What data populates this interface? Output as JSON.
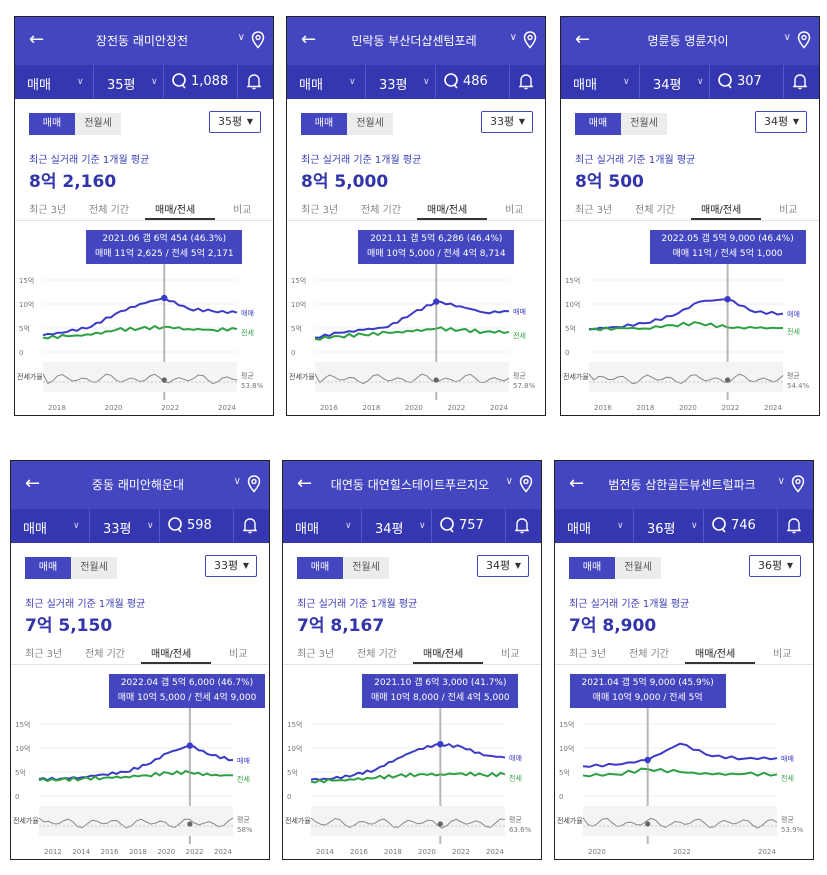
{
  "accent": "#4446c0",
  "panels": [
    {
      "title": "장전동 래미안장전",
      "deal_type": "매매",
      "size": "35평",
      "comments": "1,088",
      "tabs_seg": [
        "매매",
        "전월세"
      ],
      "size_select": "35평",
      "caption": "최근 실거래 기준 1개월 평균",
      "price": "8억 2,160",
      "tabs": [
        "최근 3년",
        "전체 기간",
        "매매/전세",
        "비교"
      ],
      "tip": {
        "line1": "2021.06  갭 6억 454 (46.3%)",
        "line2": "매매 11억 2,625 / 전세 5억 2,171"
      },
      "y_ticks": [
        "15억",
        "10억",
        "5억",
        "0"
      ],
      "x_ticks": [
        "2018",
        "2020",
        "2022",
        "2024"
      ],
      "legend_sale": "매매",
      "legend_jeonse": "전세",
      "ratio_label": "전세가율",
      "avg_label": "평균",
      "avg_value": "53.8%"
    },
    {
      "title": "민락동 부산더샵센텀포레",
      "deal_type": "매매",
      "size": "33평",
      "comments": "486",
      "tabs_seg": [
        "매매",
        "전월세"
      ],
      "size_select": "33평",
      "caption": "최근 실거래 기준 1개월 평균",
      "price": "8억 5,000",
      "tabs": [
        "최근 3년",
        "전체 기간",
        "매매/전세",
        "비교"
      ],
      "tip": {
        "line1": "2021.11  갭 5억 6,286 (46.4%)",
        "line2": "매매 10억 5,000 / 전세 4억 8,714"
      },
      "y_ticks": [
        "15억",
        "10억",
        "5억",
        "0"
      ],
      "x_ticks": [
        "2016",
        "2018",
        "2020",
        "2022",
        "2024"
      ],
      "legend_sale": "매매",
      "legend_jeonse": "전세",
      "ratio_label": "전세가율",
      "avg_label": "평균",
      "avg_value": "57.8%"
    },
    {
      "title": "명륜동 명륜자이",
      "deal_type": "매매",
      "size": "34평",
      "comments": "307",
      "tabs_seg": [
        "매매",
        "전월세"
      ],
      "size_select": "34평",
      "caption": "최근 실거래 기준 1개월 평균",
      "price": "8억 500",
      "tabs": [
        "최근 3년",
        "전체 기간",
        "매매/전세",
        "비교"
      ],
      "tip": {
        "line1": "2022.05  갭 5억 9,000 (46.4%)",
        "line2": "매매 11억 / 전세 5억 1,000"
      },
      "y_ticks": [
        "15억",
        "10억",
        "5억",
        "0"
      ],
      "x_ticks": [
        "2016",
        "2018",
        "2020",
        "2022",
        "2024"
      ],
      "legend_sale": "매매",
      "legend_jeonse": "전세",
      "ratio_label": "전세가율",
      "avg_label": "평균",
      "avg_value": "54.4%"
    },
    {
      "title": "중동 래미안해운대",
      "deal_type": "매매",
      "size": "33평",
      "comments": "598",
      "tabs_seg": [
        "매매",
        "전월세"
      ],
      "size_select": "33평",
      "caption": "최근 실거래 기준 1개월 평균",
      "price": "7억 5,150",
      "tabs": [
        "최근 3년",
        "전체 기간",
        "매매/전세",
        "비교"
      ],
      "tip": {
        "line1": "2022.04  갭 5억 6,000 (46.7%)",
        "line2": "매매 10억 5,000 / 전세 4억 9,000"
      },
      "y_ticks": [
        "15억",
        "10억",
        "5억",
        "0"
      ],
      "x_ticks": [
        "2012",
        "2014",
        "2016",
        "2018",
        "2020",
        "2022",
        "2024"
      ],
      "legend_sale": "매매",
      "legend_jeonse": "전세",
      "ratio_label": "전세가율",
      "avg_label": "평균",
      "avg_value": "58%"
    },
    {
      "title": "대연동 대연힐스테이트푸르지오",
      "deal_type": "매매",
      "size": "34평",
      "comments": "757",
      "tabs_seg": [
        "매매",
        "전월세"
      ],
      "size_select": "34평",
      "caption": "최근 실거래 기준 1개월 평균",
      "price": "7억 8,167",
      "tabs": [
        "최근 3년",
        "전체 기간",
        "매매/전세",
        "비교"
      ],
      "tip": {
        "line1": "2021.10  갭 6억 3,000 (41.7%)",
        "line2": "매매 10억 8,000 / 전세 4억 5,000"
      },
      "y_ticks": [
        "15억",
        "10억",
        "5억",
        "0"
      ],
      "x_ticks": [
        "2014",
        "2016",
        "2018",
        "2020",
        "2022",
        "2024"
      ],
      "legend_sale": "매매",
      "legend_jeonse": "전세",
      "ratio_label": "전세가율",
      "avg_label": "평균",
      "avg_value": "63.6%"
    },
    {
      "title": "범전동 삼한골든뷰센트럴파크",
      "deal_type": "매매",
      "size": "36평",
      "comments": "746",
      "tabs_seg": [
        "매매",
        "전월세"
      ],
      "size_select": "36평",
      "caption": "최근 실거래 기준 1개월 평균",
      "price": "7억 8,900",
      "tabs": [
        "최근 3년",
        "전체 기간",
        "매매/전세",
        "비교"
      ],
      "tip": {
        "line1": "2021.04  갭 5억 9,000 (45.9%)",
        "line2": "매매 10억 9,000 / 전세 5억"
      },
      "y_ticks": [
        "15억",
        "10억",
        "5억",
        "0"
      ],
      "x_ticks": [
        "2020",
        "2022",
        "2024"
      ],
      "legend_sale": "매매",
      "legend_jeonse": "전세",
      "ratio_label": "전세가율",
      "avg_label": "평균",
      "avg_value": "53.9%"
    }
  ],
  "chart_data": [
    {
      "type": "line",
      "x": [
        "2017",
        "2018",
        "2019",
        "2020",
        "2021",
        "2021.06",
        "2022",
        "2023",
        "2024"
      ],
      "series": [
        {
          "name": "매매",
          "values": [
            3.5,
            4.2,
            5.3,
            8.0,
            10.0,
            11.26,
            9.0,
            8.5,
            8.2
          ]
        },
        {
          "name": "전세",
          "values": [
            3.0,
            3.3,
            3.6,
            4.6,
            4.9,
            5.22,
            4.8,
            4.6,
            4.8
          ]
        }
      ],
      "ylim": [
        0,
        15
      ]
    },
    {
      "type": "line",
      "x": [
        "2014",
        "2016",
        "2018",
        "2020",
        "2021",
        "2021.11",
        "2022",
        "2023",
        "2024"
      ],
      "series": [
        {
          "name": "매매",
          "values": [
            3.0,
            4.0,
            4.6,
            5.2,
            8.0,
            10.5,
            9.5,
            8.2,
            8.5
          ]
        },
        {
          "name": "전세",
          "values": [
            2.7,
            3.3,
            3.6,
            4.0,
            4.3,
            4.87,
            4.6,
            4.2,
            4.2
          ]
        }
      ],
      "ylim": [
        0,
        15
      ]
    },
    {
      "type": "line",
      "x": [
        "2014",
        "2016",
        "2018",
        "2020",
        "2021",
        "2022.05",
        "2023",
        "2024"
      ],
      "series": [
        {
          "name": "매매",
          "values": [
            4.8,
            5.2,
            6.0,
            7.5,
            10.5,
            11.0,
            8.3,
            8.0
          ]
        },
        {
          "name": "전세",
          "values": [
            4.6,
            5.0,
            4.9,
            5.6,
            6.0,
            5.1,
            5.0,
            5.0
          ]
        }
      ],
      "ylim": [
        0,
        15
      ]
    },
    {
      "type": "line",
      "x": [
        "2011",
        "2012",
        "2014",
        "2016",
        "2018",
        "2020",
        "2021",
        "2022.04",
        "2023",
        "2024"
      ],
      "series": [
        {
          "name": "매매",
          "values": [
            3.5,
            3.6,
            3.9,
            4.5,
            5.0,
            6.5,
            9.0,
            10.5,
            8.5,
            7.5
          ]
        },
        {
          "name": "전세",
          "values": [
            3.3,
            3.4,
            3.6,
            3.8,
            4.0,
            4.3,
            4.8,
            4.9,
            4.3,
            4.3
          ]
        }
      ],
      "ylim": [
        0,
        15
      ]
    },
    {
      "type": "line",
      "x": [
        "2013",
        "2014",
        "2016",
        "2018",
        "2020",
        "2021",
        "2021.10",
        "2022",
        "2023",
        "2024"
      ],
      "series": [
        {
          "name": "매매",
          "values": [
            3.4,
            3.6,
            4.4,
            5.5,
            7.8,
            9.8,
            10.8,
            10.2,
            8.5,
            8.0
          ]
        },
        {
          "name": "전세",
          "values": [
            3.0,
            3.2,
            3.4,
            3.8,
            4.2,
            4.5,
            4.5,
            4.7,
            4.4,
            4.5
          ]
        }
      ],
      "ylim": [
        0,
        15
      ]
    },
    {
      "type": "line",
      "x": [
        "2019",
        "2020",
        "2020.06",
        "2021.04",
        "2022",
        "2023",
        "2024"
      ],
      "series": [
        {
          "name": "매매",
          "values": [
            6.2,
            6.5,
            7.5,
            10.9,
            8.3,
            7.8,
            7.9
          ]
        },
        {
          "name": "전세",
          "values": [
            4.3,
            4.5,
            5.6,
            5.0,
            4.5,
            4.6,
            4.5
          ]
        }
      ],
      "ylim": [
        0,
        15
      ]
    }
  ]
}
